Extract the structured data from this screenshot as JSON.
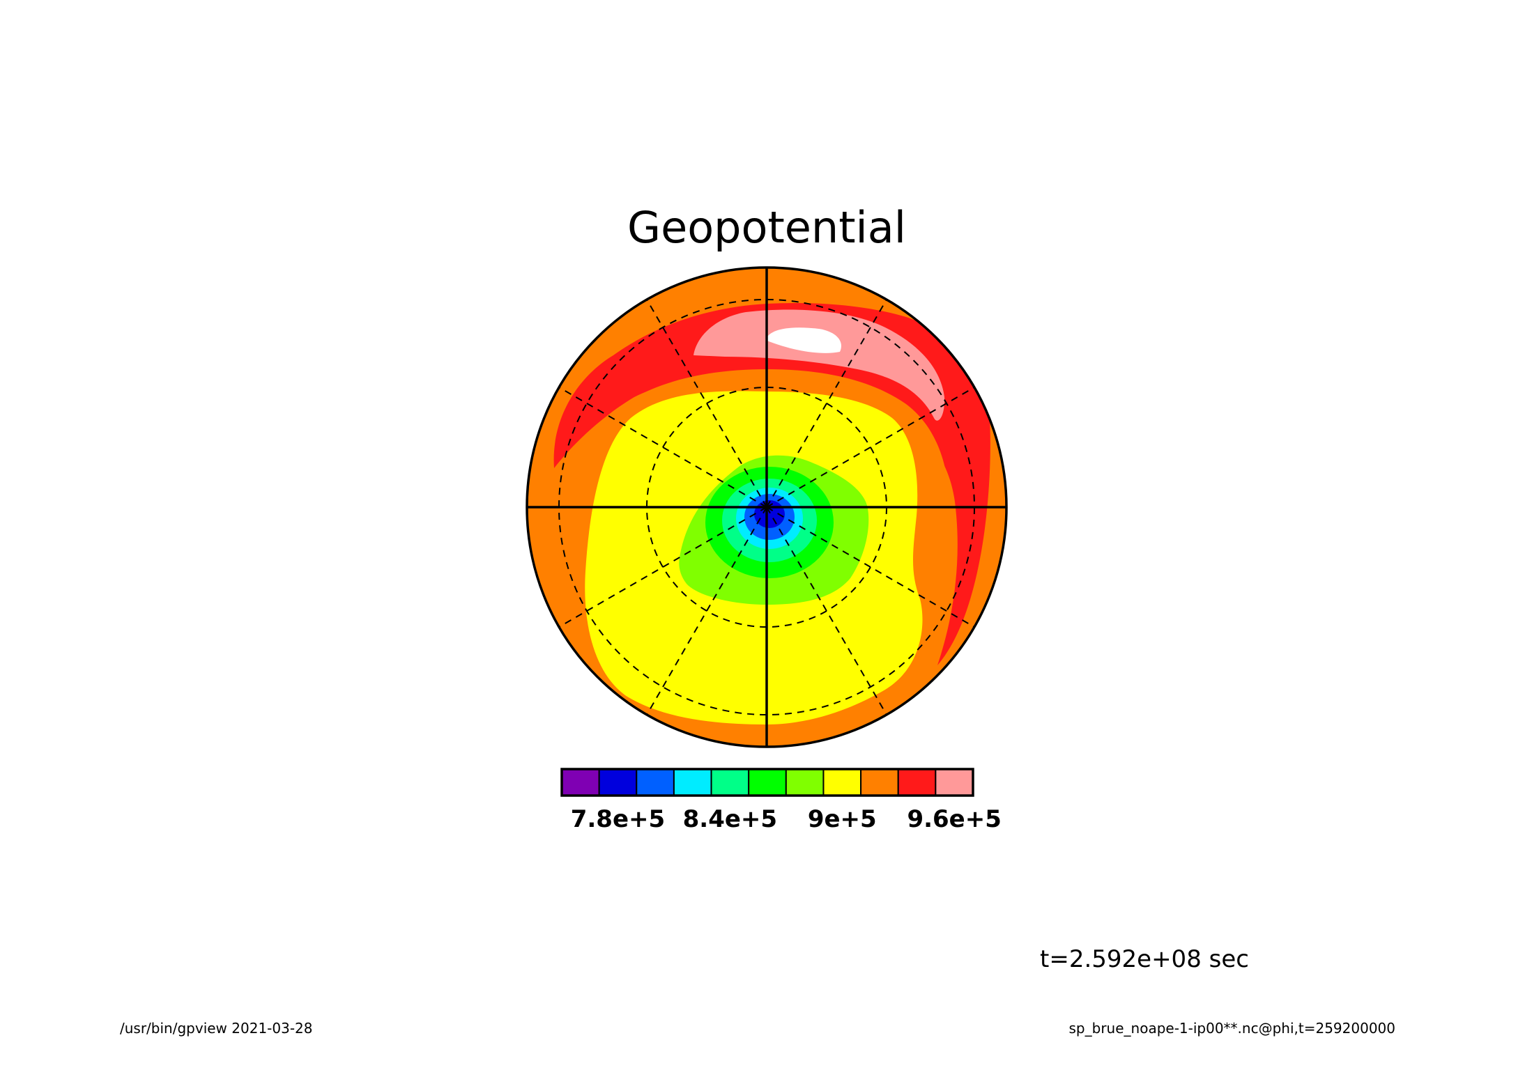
{
  "chart_data": {
    "type": "heatmap",
    "title": "Geopotential",
    "projection": "polar stereographic",
    "variable": "phi",
    "color_levels": [
      {
        "color": "#7f00b3"
      },
      {
        "color": "#0000dd"
      },
      {
        "color": "#0060ff"
      },
      {
        "color": "#00ecff"
      },
      {
        "color": "#00ff88"
      },
      {
        "color": "#00ff00"
      },
      {
        "color": "#80ff00"
      },
      {
        "color": "#ffff00"
      },
      {
        "color": "#ff8000"
      },
      {
        "color": "#ff1a1a"
      },
      {
        "color": "#ff9999"
      }
    ],
    "colorbar_ticks": [
      {
        "label": "7.8e+5",
        "boundary_index": 1.5
      },
      {
        "label": "8.4e+5",
        "boundary_index": 4.5
      },
      {
        "label": "9e+5",
        "boundary_index": 7.5
      },
      {
        "label": "9.6e+5",
        "boundary_index": 10.5
      }
    ],
    "time_label": "t=2.592e+08 sec",
    "grid": true,
    "legend_position": "bottom"
  },
  "footer": {
    "left": "/usr/bin/gpview  2021-03-28",
    "right": "sp_brue_noape-1-ip00**.nc@phi,t=259200000"
  }
}
